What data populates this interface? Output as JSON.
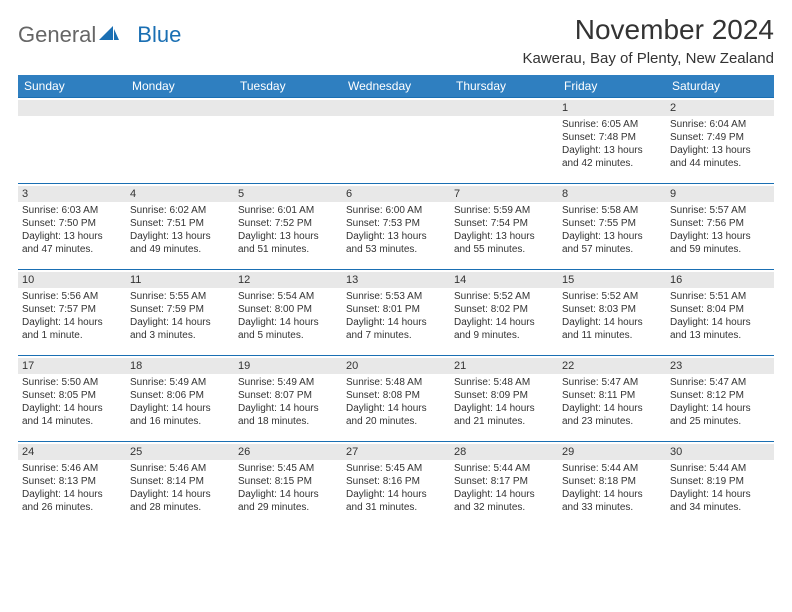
{
  "logo": {
    "text1": "General",
    "text2": "Blue"
  },
  "title": "November 2024",
  "location": "Kawerau, Bay of Plenty, New Zealand",
  "colors": {
    "header_bg": "#2f7fc0",
    "header_text": "#ffffff",
    "grid_line": "#1a6fb3",
    "daystrip_bg": "#e8e8e8",
    "text": "#333333",
    "logo_general": "#666666",
    "logo_blue": "#1a6fb3"
  },
  "days_of_week": [
    "Sunday",
    "Monday",
    "Tuesday",
    "Wednesday",
    "Thursday",
    "Friday",
    "Saturday"
  ],
  "weeks": [
    [
      {
        "day": null
      },
      {
        "day": null
      },
      {
        "day": null
      },
      {
        "day": null
      },
      {
        "day": null
      },
      {
        "day": "1",
        "sunrise": "Sunrise: 6:05 AM",
        "sunset": "Sunset: 7:48 PM",
        "daylight": "Daylight: 13 hours and 42 minutes."
      },
      {
        "day": "2",
        "sunrise": "Sunrise: 6:04 AM",
        "sunset": "Sunset: 7:49 PM",
        "daylight": "Daylight: 13 hours and 44 minutes."
      }
    ],
    [
      {
        "day": "3",
        "sunrise": "Sunrise: 6:03 AM",
        "sunset": "Sunset: 7:50 PM",
        "daylight": "Daylight: 13 hours and 47 minutes."
      },
      {
        "day": "4",
        "sunrise": "Sunrise: 6:02 AM",
        "sunset": "Sunset: 7:51 PM",
        "daylight": "Daylight: 13 hours and 49 minutes."
      },
      {
        "day": "5",
        "sunrise": "Sunrise: 6:01 AM",
        "sunset": "Sunset: 7:52 PM",
        "daylight": "Daylight: 13 hours and 51 minutes."
      },
      {
        "day": "6",
        "sunrise": "Sunrise: 6:00 AM",
        "sunset": "Sunset: 7:53 PM",
        "daylight": "Daylight: 13 hours and 53 minutes."
      },
      {
        "day": "7",
        "sunrise": "Sunrise: 5:59 AM",
        "sunset": "Sunset: 7:54 PM",
        "daylight": "Daylight: 13 hours and 55 minutes."
      },
      {
        "day": "8",
        "sunrise": "Sunrise: 5:58 AM",
        "sunset": "Sunset: 7:55 PM",
        "daylight": "Daylight: 13 hours and 57 minutes."
      },
      {
        "day": "9",
        "sunrise": "Sunrise: 5:57 AM",
        "sunset": "Sunset: 7:56 PM",
        "daylight": "Daylight: 13 hours and 59 minutes."
      }
    ],
    [
      {
        "day": "10",
        "sunrise": "Sunrise: 5:56 AM",
        "sunset": "Sunset: 7:57 PM",
        "daylight": "Daylight: 14 hours and 1 minute."
      },
      {
        "day": "11",
        "sunrise": "Sunrise: 5:55 AM",
        "sunset": "Sunset: 7:59 PM",
        "daylight": "Daylight: 14 hours and 3 minutes."
      },
      {
        "day": "12",
        "sunrise": "Sunrise: 5:54 AM",
        "sunset": "Sunset: 8:00 PM",
        "daylight": "Daylight: 14 hours and 5 minutes."
      },
      {
        "day": "13",
        "sunrise": "Sunrise: 5:53 AM",
        "sunset": "Sunset: 8:01 PM",
        "daylight": "Daylight: 14 hours and 7 minutes."
      },
      {
        "day": "14",
        "sunrise": "Sunrise: 5:52 AM",
        "sunset": "Sunset: 8:02 PM",
        "daylight": "Daylight: 14 hours and 9 minutes."
      },
      {
        "day": "15",
        "sunrise": "Sunrise: 5:52 AM",
        "sunset": "Sunset: 8:03 PM",
        "daylight": "Daylight: 14 hours and 11 minutes."
      },
      {
        "day": "16",
        "sunrise": "Sunrise: 5:51 AM",
        "sunset": "Sunset: 8:04 PM",
        "daylight": "Daylight: 14 hours and 13 minutes."
      }
    ],
    [
      {
        "day": "17",
        "sunrise": "Sunrise: 5:50 AM",
        "sunset": "Sunset: 8:05 PM",
        "daylight": "Daylight: 14 hours and 14 minutes."
      },
      {
        "day": "18",
        "sunrise": "Sunrise: 5:49 AM",
        "sunset": "Sunset: 8:06 PM",
        "daylight": "Daylight: 14 hours and 16 minutes."
      },
      {
        "day": "19",
        "sunrise": "Sunrise: 5:49 AM",
        "sunset": "Sunset: 8:07 PM",
        "daylight": "Daylight: 14 hours and 18 minutes."
      },
      {
        "day": "20",
        "sunrise": "Sunrise: 5:48 AM",
        "sunset": "Sunset: 8:08 PM",
        "daylight": "Daylight: 14 hours and 20 minutes."
      },
      {
        "day": "21",
        "sunrise": "Sunrise: 5:48 AM",
        "sunset": "Sunset: 8:09 PM",
        "daylight": "Daylight: 14 hours and 21 minutes."
      },
      {
        "day": "22",
        "sunrise": "Sunrise: 5:47 AM",
        "sunset": "Sunset: 8:11 PM",
        "daylight": "Daylight: 14 hours and 23 minutes."
      },
      {
        "day": "23",
        "sunrise": "Sunrise: 5:47 AM",
        "sunset": "Sunset: 8:12 PM",
        "daylight": "Daylight: 14 hours and 25 minutes."
      }
    ],
    [
      {
        "day": "24",
        "sunrise": "Sunrise: 5:46 AM",
        "sunset": "Sunset: 8:13 PM",
        "daylight": "Daylight: 14 hours and 26 minutes."
      },
      {
        "day": "25",
        "sunrise": "Sunrise: 5:46 AM",
        "sunset": "Sunset: 8:14 PM",
        "daylight": "Daylight: 14 hours and 28 minutes."
      },
      {
        "day": "26",
        "sunrise": "Sunrise: 5:45 AM",
        "sunset": "Sunset: 8:15 PM",
        "daylight": "Daylight: 14 hours and 29 minutes."
      },
      {
        "day": "27",
        "sunrise": "Sunrise: 5:45 AM",
        "sunset": "Sunset: 8:16 PM",
        "daylight": "Daylight: 14 hours and 31 minutes."
      },
      {
        "day": "28",
        "sunrise": "Sunrise: 5:44 AM",
        "sunset": "Sunset: 8:17 PM",
        "daylight": "Daylight: 14 hours and 32 minutes."
      },
      {
        "day": "29",
        "sunrise": "Sunrise: 5:44 AM",
        "sunset": "Sunset: 8:18 PM",
        "daylight": "Daylight: 14 hours and 33 minutes."
      },
      {
        "day": "30",
        "sunrise": "Sunrise: 5:44 AM",
        "sunset": "Sunset: 8:19 PM",
        "daylight": "Daylight: 14 hours and 34 minutes."
      }
    ]
  ]
}
